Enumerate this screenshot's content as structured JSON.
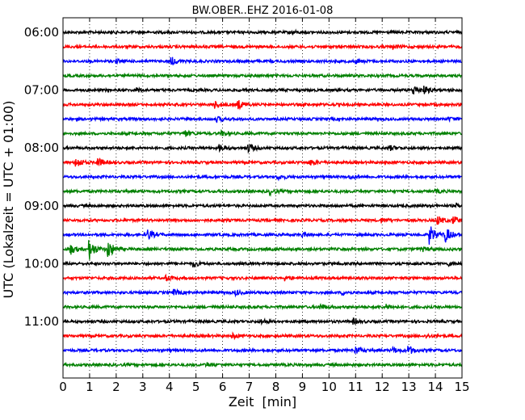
{
  "chart_data": {
    "type": "line",
    "title": "BW.OBER..EHZ 2016-01-08",
    "xlabel": "Zeit  [min]",
    "ylabel": "UTC (Lokalzeit = UTC + 01:00)",
    "xlim": [
      0,
      15
    ],
    "x_ticks": [
      "0",
      "1",
      "2",
      "3",
      "4",
      "5",
      "6",
      "7",
      "8",
      "9",
      "10",
      "11",
      "12",
      "13",
      "14",
      "15"
    ],
    "y_ticks": [
      {
        "label": "06:00",
        "trace": 0
      },
      {
        "label": "07:00",
        "trace": 4
      },
      {
        "label": "08:00",
        "trace": 8
      },
      {
        "label": "09:00",
        "trace": 12
      },
      {
        "label": "10:00",
        "trace": 16
      },
      {
        "label": "11:00",
        "trace": 20
      }
    ],
    "grid": "vertical dotted",
    "trace_minutes": 15,
    "color_cycle": [
      "#000000",
      "#ff0000",
      "#0000ff",
      "#008000"
    ],
    "traces": [
      {
        "start": "06:00",
        "events": [
          [
            8.6,
            0.3
          ]
        ]
      },
      {
        "start": "06:15",
        "events": [
          [
            12.4,
            0.4
          ]
        ]
      },
      {
        "start": "06:30",
        "events": [
          [
            2.0,
            0.3
          ],
          [
            4.1,
            0.7
          ],
          [
            11.0,
            0.4
          ]
        ]
      },
      {
        "start": "06:45",
        "events": []
      },
      {
        "start": "07:00",
        "events": [
          [
            2.8,
            0.4
          ],
          [
            13.2,
            0.9
          ],
          [
            13.6,
            0.6
          ]
        ]
      },
      {
        "start": "07:15",
        "events": [
          [
            5.7,
            0.7
          ],
          [
            6.6,
            0.8
          ]
        ]
      },
      {
        "start": "07:30",
        "events": [
          [
            5.8,
            0.4
          ],
          [
            14.5,
            0.3
          ]
        ]
      },
      {
        "start": "07:45",
        "events": [
          [
            4.6,
            0.6
          ],
          [
            6.0,
            0.4
          ]
        ]
      },
      {
        "start": "08:00",
        "events": [
          [
            5.9,
            0.6
          ],
          [
            7.0,
            0.8
          ],
          [
            12.3,
            0.4
          ]
        ]
      },
      {
        "start": "08:15",
        "events": [
          [
            0.5,
            1.0
          ],
          [
            1.3,
            0.9
          ],
          [
            9.3,
            0.6
          ]
        ]
      },
      {
        "start": "08:30",
        "events": [
          [
            8.1,
            0.4
          ],
          [
            10.8,
            0.3
          ]
        ]
      },
      {
        "start": "08:45",
        "events": [
          [
            7.8,
            0.5
          ],
          [
            14.0,
            0.3
          ]
        ]
      },
      {
        "start": "09:00",
        "events": [
          [
            14.8,
            0.3
          ]
        ]
      },
      {
        "start": "09:15",
        "events": [
          [
            14.1,
            0.8
          ],
          [
            14.7,
            0.7
          ],
          [
            12.0,
            0.4
          ]
        ]
      },
      {
        "start": "09:30",
        "events": [
          [
            3.2,
            1.0
          ],
          [
            13.8,
            1.8
          ],
          [
            14.4,
            1.5
          ],
          [
            9.0,
            0.4
          ]
        ]
      },
      {
        "start": "09:45",
        "events": [
          [
            1.0,
            2.0
          ],
          [
            1.7,
            1.8
          ],
          [
            0.3,
            0.9
          ],
          [
            13.5,
            0.4
          ]
        ]
      },
      {
        "start": "10:00",
        "events": [
          [
            4.9,
            0.6
          ],
          [
            14.5,
            0.3
          ]
        ]
      },
      {
        "start": "10:15",
        "events": [
          [
            3.9,
            0.4
          ],
          [
            8.3,
            0.5
          ]
        ]
      },
      {
        "start": "10:30",
        "events": [
          [
            4.2,
            0.5
          ],
          [
            6.5,
            0.4
          ],
          [
            10.5,
            0.4
          ]
        ]
      },
      {
        "start": "10:45",
        "events": [
          [
            9.7,
            0.5
          ],
          [
            12.2,
            0.4
          ]
        ]
      },
      {
        "start": "11:00",
        "events": [
          [
            7.5,
            0.4
          ],
          [
            10.9,
            0.5
          ]
        ]
      },
      {
        "start": "11:15",
        "events": [
          [
            6.4,
            0.4
          ],
          [
            13.7,
            0.3
          ]
        ]
      },
      {
        "start": "11:30",
        "events": [
          [
            11.0,
            0.7
          ],
          [
            13.0,
            0.8
          ],
          [
            12.4,
            0.5
          ]
        ]
      },
      {
        "start": "11:45",
        "events": [
          [
            5.4,
            0.4
          ]
        ]
      }
    ]
  }
}
